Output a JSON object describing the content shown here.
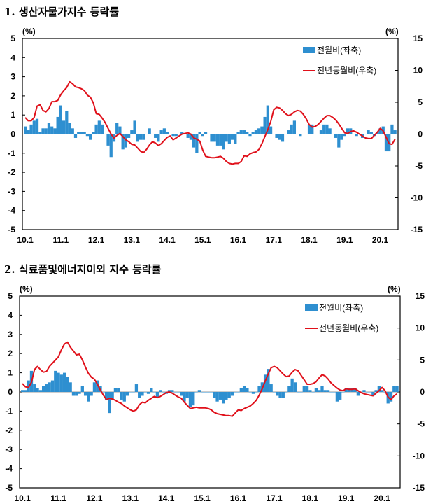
{
  "chart_data": [
    {
      "type": "bar+line",
      "title": "1. 생산자물가지수 등락률",
      "left_unit": "(%)",
      "right_unit": "(%)",
      "ylim_left": [
        -5,
        5
      ],
      "ylim_right": [
        -15,
        15
      ],
      "left_ticks": [
        "5",
        "4",
        "3",
        "2",
        "1",
        "0",
        "-1",
        "-2",
        "-3",
        "-4",
        "-5"
      ],
      "right_ticks": [
        "15",
        "10",
        "5",
        "0",
        "-5",
        "-10",
        "-15"
      ],
      "x_ticks": [
        "10.1",
        "11.1",
        "12.1",
        "13.1",
        "14.1",
        "15.1",
        "16.1",
        "17.1",
        "18.1",
        "19.1",
        "20.1"
      ],
      "x_start": "2010.1",
      "x_end": "2020.6",
      "legend_position": "top-right",
      "series": [
        {
          "name": "전월비(좌축)",
          "type": "bar",
          "axis": "left",
          "color": "#2E8FD0",
          "values": [
            0.4,
            0.2,
            0.5,
            0.7,
            0.8,
            0.1,
            0.3,
            0.3,
            0.6,
            0.4,
            0.3,
            0.9,
            1.5,
            0.7,
            1.2,
            0.6,
            0.3,
            -0.2,
            0.1,
            0.1,
            0.1,
            -0.1,
            -0.3,
            0.1,
            0.5,
            0.7,
            0.5,
            0.0,
            -0.6,
            -1.2,
            -0.4,
            0.6,
            0.4,
            -0.8,
            -0.7,
            -0.2,
            0.2,
            0.7,
            -0.4,
            -0.3,
            -0.3,
            0.0,
            0.3,
            0.0,
            -0.2,
            -0.4,
            0.2,
            0.3,
            0.1,
            0.0,
            -0.1,
            -0.1,
            0.0,
            0.1,
            0.0,
            -0.2,
            -0.3,
            -0.7,
            -1.0,
            0.1,
            -0.1,
            0.1,
            0.0,
            -0.4,
            -0.4,
            -0.6,
            -0.6,
            -0.8,
            -0.4,
            -0.5,
            -0.3,
            -0.5,
            0.1,
            0.2,
            0.2,
            0.1,
            -0.1,
            0.1,
            0.2,
            0.3,
            0.4,
            0.9,
            1.5,
            0.4,
            0.0,
            -0.2,
            -0.3,
            -0.4,
            0.0,
            0.2,
            0.5,
            0.7,
            0.0,
            -0.1,
            0.0,
            0.0,
            0.5,
            0.5,
            0.0,
            0.0,
            0.2,
            0.5,
            0.5,
            0.3,
            0.0,
            -0.2,
            -0.7,
            -0.3,
            -0.1,
            0.3,
            0.3,
            0.0,
            -0.1,
            0.0,
            -0.2,
            0.0,
            0.2,
            0.1,
            -0.1,
            0.1,
            0.3,
            0.4,
            -0.9,
            -0.9,
            0.5,
            0.2
          ]
        },
        {
          "name": "전년동월비(우축)",
          "type": "line",
          "axis": "right",
          "color": "#E0101A",
          "values": [
            2.6,
            2.1,
            2.1,
            2.6,
            4.4,
            4.6,
            3.7,
            3.5,
            4.0,
            5.1,
            5.1,
            5.3,
            6.2,
            6.8,
            7.3,
            8.2,
            7.9,
            7.4,
            7.3,
            7.1,
            6.8,
            6.1,
            5.8,
            4.9,
            3.2,
            3.1,
            2.5,
            1.8,
            0.9,
            0.0,
            -0.6,
            -0.2,
            0.1,
            -0.4,
            -0.9,
            -1.2,
            -1.6,
            -1.7,
            -2.2,
            -2.7,
            -2.9,
            -2.4,
            -1.7,
            -1.2,
            -1.4,
            -1.8,
            -1.5,
            -1.0,
            -0.5,
            -0.3,
            -0.9,
            -0.6,
            -0.3,
            0.0,
            0.1,
            0.2,
            0.0,
            -0.6,
            -0.8,
            -1.1,
            -2.5,
            -3.5,
            -3.6,
            -3.7,
            -3.7,
            -3.6,
            -3.5,
            -3.8,
            -4.3,
            -4.6,
            -4.7,
            -4.6,
            -4.6,
            -4.3,
            -3.4,
            -3.5,
            -3.1,
            -2.9,
            -2.8,
            -2.4,
            -1.5,
            -0.4,
            0.7,
            2.0,
            3.8,
            4.2,
            4.1,
            3.7,
            3.2,
            2.9,
            3.1,
            3.5,
            3.7,
            3.6,
            3.1,
            2.4,
            1.5,
            1.1,
            1.2,
            1.5,
            2.0,
            2.5,
            2.9,
            2.9,
            2.6,
            2.2,
            1.6,
            0.9,
            0.2,
            0.1,
            0.4,
            0.5,
            0.3,
            0.0,
            -0.3,
            -0.6,
            -0.7,
            -0.7,
            -0.2,
            0.3,
            0.9,
            0.5,
            -0.5,
            -1.5,
            -1.6,
            -0.8
          ]
        }
      ]
    },
    {
      "type": "bar+line",
      "title": "2. 식료품및에너지이외 지수 등락률",
      "left_unit": "(%)",
      "right_unit": "(%)",
      "ylim_left": [
        -5,
        5
      ],
      "ylim_right": [
        -15,
        15
      ],
      "left_ticks": [
        "5",
        "4",
        "3",
        "2",
        "1",
        "0",
        "-1",
        "-2",
        "-3",
        "-4",
        "-5"
      ],
      "right_ticks": [
        "15",
        "10",
        "5",
        "0",
        "-5",
        "-10",
        "-15"
      ],
      "x_ticks": [
        "10.1",
        "11.1",
        "12.1",
        "13.1",
        "14.1",
        "15.1",
        "16.1",
        "17.1",
        "18.1",
        "19.1",
        "20.1"
      ],
      "x_start": "2010.1",
      "x_end": "2020.6",
      "legend_position": "top-right",
      "series": [
        {
          "name": "전월비(좌축)",
          "type": "bar",
          "axis": "left",
          "color": "#2E8FD0",
          "values": [
            0.1,
            0.1,
            0.6,
            1.1,
            0.4,
            0.2,
            0.1,
            0.3,
            0.4,
            0.5,
            0.6,
            1.1,
            1.0,
            0.9,
            1.0,
            0.8,
            0.5,
            -0.2,
            -0.2,
            -0.1,
            0.3,
            -0.2,
            -0.5,
            -0.2,
            0.5,
            0.6,
            0.3,
            0.0,
            -0.4,
            -1.1,
            -0.4,
            0.2,
            0.2,
            -0.4,
            -0.5,
            -0.2,
            0.0,
            0.0,
            0.4,
            -0.3,
            -0.2,
            0.0,
            -0.1,
            0.2,
            0.0,
            -0.3,
            0.1,
            0.0,
            -0.1,
            0.1,
            0.1,
            0.0,
            0.0,
            -0.2,
            -0.5,
            -0.3,
            -0.8,
            -0.7,
            0.0,
            0.1,
            0.0,
            0.0,
            0.0,
            0.0,
            -0.3,
            -0.5,
            -0.4,
            -0.6,
            -0.4,
            -0.3,
            -0.2,
            0.0,
            0.0,
            0.2,
            0.3,
            0.2,
            0.0,
            -0.1,
            0.0,
            0.3,
            0.5,
            0.9,
            1.2,
            0.4,
            0.0,
            -0.2,
            -0.3,
            -0.3,
            0.0,
            0.3,
            0.7,
            0.5,
            0.0,
            0.0,
            0.3,
            0.3,
            0.1,
            0.0,
            0.2,
            0.1,
            0.3,
            0.1,
            0.1,
            0.0,
            0.0,
            -0.5,
            -0.4,
            0.0,
            0.2,
            0.2,
            0.2,
            0.2,
            -0.2,
            0.0,
            0.1,
            0.0,
            0.0,
            -0.2,
            0.1,
            0.3,
            0.1,
            0.0,
            -0.6,
            -0.5,
            0.3,
            0.3
          ]
        },
        {
          "name": "전년동월비(우축)",
          "type": "line",
          "axis": "right",
          "color": "#E0101A",
          "values": [
            1.3,
            0.8,
            0.7,
            1.5,
            3.5,
            4.0,
            3.5,
            3.1,
            3.2,
            4.0,
            4.5,
            5.0,
            5.5,
            6.6,
            7.5,
            7.8,
            7.0,
            6.4,
            5.8,
            5.9,
            5.0,
            3.9,
            2.9,
            2.3,
            2.0,
            1.2,
            0.3,
            -0.5,
            -1.2,
            -1.0,
            -1.1,
            -1.3,
            -1.6,
            -1.8,
            -2.2,
            -2.5,
            -2.8,
            -3.0,
            -2.8,
            -2.0,
            -1.6,
            -1.7,
            -1.3,
            -1.0,
            -0.7,
            -0.9,
            -0.7,
            -0.4,
            -0.1,
            0.0,
            -0.2,
            -0.5,
            -0.8,
            -1.0,
            -1.6,
            -2.1,
            -2.6,
            -2.5,
            -2.4,
            -2.5,
            -2.5,
            -2.5,
            -2.6,
            -2.8,
            -3.2,
            -3.4,
            -3.5,
            -3.6,
            -3.7,
            -3.7,
            -3.8,
            -3.3,
            -2.8,
            -2.9,
            -2.6,
            -2.4,
            -2.2,
            -1.8,
            -1.3,
            -0.5,
            0.5,
            1.7,
            2.8,
            3.8,
            4.0,
            3.8,
            3.3,
            2.8,
            2.4,
            2.5,
            3.1,
            3.5,
            3.3,
            2.6,
            1.9,
            1.2,
            1.2,
            1.3,
            1.6,
            2.2,
            2.7,
            2.5,
            2.0,
            1.4,
            1.0,
            0.6,
            0.3,
            0.2,
            0.5,
            0.4,
            0.4,
            0.5,
            0.2,
            -0.1,
            -0.3,
            -0.4,
            -0.5,
            -0.6,
            -0.2,
            0.2,
            0.7,
            0.2,
            -0.8,
            -1.2,
            -0.6,
            -0.3
          ]
        }
      ]
    }
  ]
}
